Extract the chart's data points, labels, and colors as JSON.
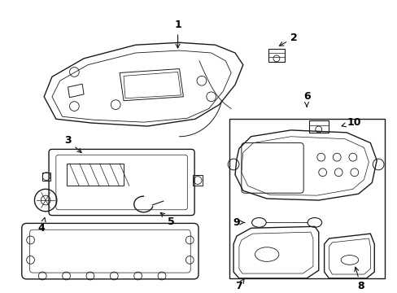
{
  "bg_color": "#ffffff",
  "line_color": "#1a1a1a",
  "label_color": "#000000",
  "lw": 1.0
}
